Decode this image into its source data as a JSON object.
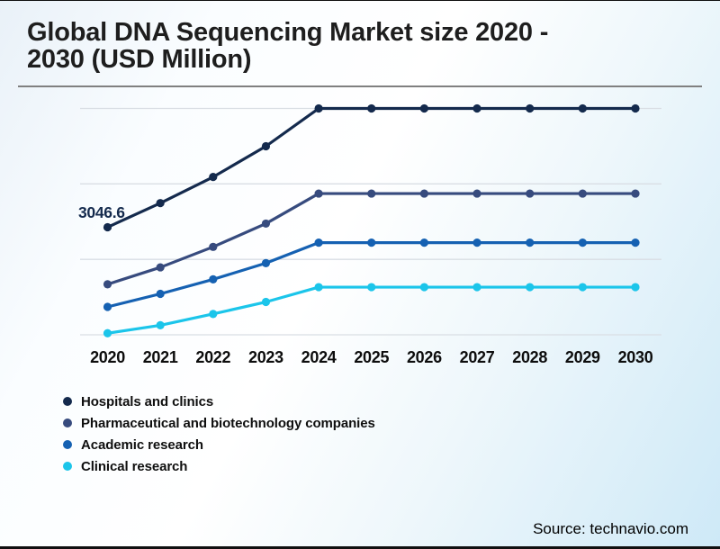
{
  "chart_data": {
    "type": "line",
    "title": "Global DNA Sequencing Market size 2020 -\n2030 (USD Million)",
    "categories": [
      "2020",
      "2021",
      "2022",
      "2023",
      "2024",
      "2025",
      "2026",
      "2027",
      "2028",
      "2029",
      "2030"
    ],
    "xlabel": "",
    "ylabel": "USD Million",
    "y_axis_labels_visible": false,
    "ylim": [
      0,
      6600
    ],
    "grid": "horizontal",
    "legend_position": "bottom-left",
    "series": [
      {
        "name": "Hospitals and clinics",
        "color": "#142A4D",
        "values": [
          3046.6,
          3730,
          4470,
          5340,
          6410,
          6410,
          6410,
          6410,
          6410,
          6410,
          6410
        ]
      },
      {
        "name": "Pharmaceutical and biotechnology companies",
        "color": "#374B7E",
        "values": [
          1430,
          1910,
          2490,
          3150,
          4000,
          4000,
          4000,
          4000,
          4000,
          4000,
          4000
        ]
      },
      {
        "name": "Academic research",
        "color": "#1561B2",
        "values": [
          790,
          1160,
          1570,
          2030,
          2610,
          2610,
          2610,
          2610,
          2610,
          2610,
          2610
        ]
      },
      {
        "name": "Clinical research",
        "color": "#1BC5EA",
        "values": [
          45,
          270,
          590,
          930,
          1350,
          1350,
          1350,
          1350,
          1350,
          1350,
          1350
        ]
      }
    ],
    "data_labels": [
      {
        "series": "Hospitals and clinics",
        "category": "2020",
        "text": "3046.6"
      }
    ]
  },
  "footer": {
    "source": "Source: technavio.com"
  },
  "colors": {
    "grid": "#D9DEE4",
    "title": "#1E1E1E",
    "rule": "#808080",
    "axis_text": "#0D0D0D"
  }
}
